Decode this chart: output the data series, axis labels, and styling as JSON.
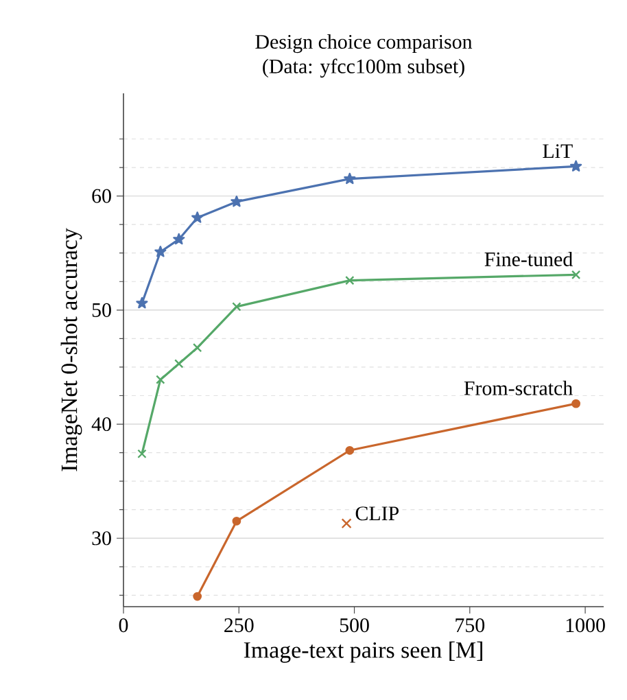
{
  "chart_data": {
    "type": "line",
    "title": "Design choice comparison",
    "subtitle": "(Data: yfcc100m subset)",
    "xlabel": "Image-text pairs seen [M]",
    "ylabel": "ImageNet 0-shot accuracy",
    "xlim": [
      0,
      1040
    ],
    "xticks": [
      0,
      250,
      500,
      750,
      1000
    ],
    "ylim": [
      24,
      69
    ],
    "yticks": [
      {
        "value": 25,
        "label": null
      },
      {
        "value": 27.5,
        "label": null
      },
      30,
      {
        "value": 32.5,
        "label": null
      },
      {
        "value": 35,
        "label": null
      },
      {
        "value": 37.5,
        "label": null
      },
      40,
      {
        "value": 42.5,
        "label": null
      },
      {
        "value": 45,
        "label": null
      },
      {
        "value": 47.5,
        "label": null
      },
      50,
      {
        "value": 52.5,
        "label": null
      },
      {
        "value": 55,
        "label": null
      },
      {
        "value": 57.5,
        "label": null
      },
      60,
      {
        "value": 62.5,
        "label": null
      },
      {
        "value": 65,
        "label": null
      }
    ],
    "grid": "y",
    "series": [
      {
        "name": "LiT",
        "color": "#4c72b0",
        "marker": "star",
        "x": [
          40,
          80,
          120,
          160,
          245,
          490,
          980
        ],
        "values": [
          50.6,
          55.1,
          56.2,
          58.1,
          59.5,
          61.5,
          62.6
        ]
      },
      {
        "name": "Fine-tuned",
        "color": "#55a868",
        "marker": "cross",
        "x": [
          40,
          80,
          120,
          160,
          245,
          490,
          980
        ],
        "values": [
          37.4,
          43.9,
          45.3,
          46.7,
          50.3,
          52.6,
          53.1
        ]
      },
      {
        "name": "From-scratch",
        "color": "#c9662c",
        "marker": "circle",
        "x": [
          160,
          245,
          490,
          980
        ],
        "values": [
          24.9,
          31.5,
          37.7,
          41.8
        ]
      },
      {
        "name": "CLIP",
        "type": "scatter",
        "color": "#c9662c",
        "marker": "cross",
        "x": [
          483
        ],
        "values": [
          31.3
        ]
      }
    ]
  }
}
